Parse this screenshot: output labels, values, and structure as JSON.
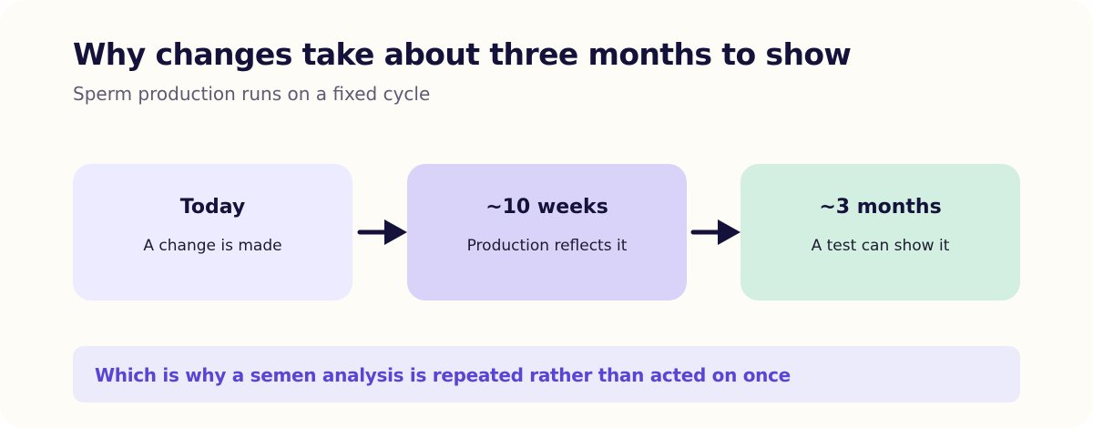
{
  "header": {
    "title": "Why changes take about three months to show",
    "subtitle": "Sperm production runs on a fixed cycle"
  },
  "steps": [
    {
      "label": "Today",
      "description": "A change is made",
      "color": "#ecebff"
    },
    {
      "label": "~10 weeks",
      "description": "Production reflects it",
      "color": "#d9d3f9"
    },
    {
      "label": "~3 months",
      "description": "A test can show it",
      "color": "#d2efe2"
    }
  ],
  "arrow_color": "#14123a",
  "note": {
    "text": "Which is why a semen analysis is repeated rather than acted on once"
  }
}
